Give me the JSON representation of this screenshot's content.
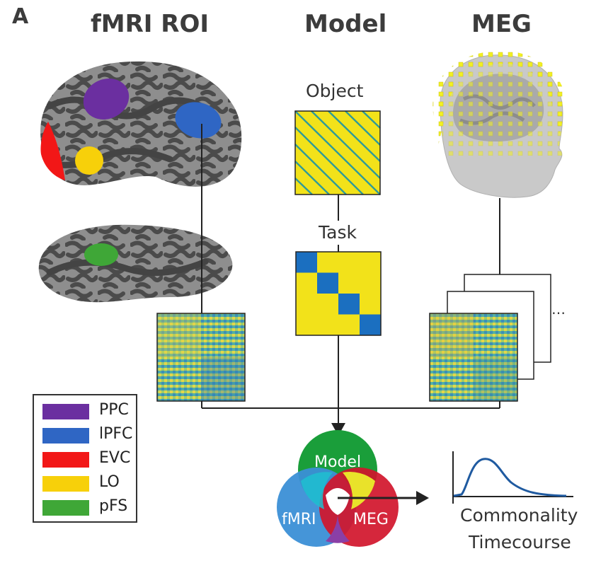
{
  "panel_label": "A",
  "columns": {
    "fmri": "fMRI ROI",
    "model": "Model",
    "meg": "MEG"
  },
  "model_labels": {
    "object": "Object",
    "task": "Task"
  },
  "meg_ellipsis": "…",
  "legend": [
    {
      "label": "PPC",
      "color": "#6b2fa0"
    },
    {
      "label": "lPFC",
      "color": "#2f66c4"
    },
    {
      "label": "EVC",
      "color": "#f21717"
    },
    {
      "label": "LO",
      "color": "#f7d00a"
    },
    {
      "label": "pFS",
      "color": "#3fa737"
    }
  ],
  "venn": {
    "model": "Model",
    "fmri": "fMRI",
    "meg": "MEG",
    "model_color": "#1a9e3a",
    "fmri_color": "#3b8fd6",
    "meg_color": "#d1152b"
  },
  "timecourse": {
    "line1": "Commonality",
    "line2": "Timecourse",
    "color": "#1f5aa0"
  },
  "colors": {
    "matrix_yellow": "#f2e21a",
    "matrix_blue": "#1b6fc0",
    "matrix_teal": "#2e9a9a",
    "brain_light": "#8a8a8a",
    "brain_dark": "#4a4a4a"
  }
}
